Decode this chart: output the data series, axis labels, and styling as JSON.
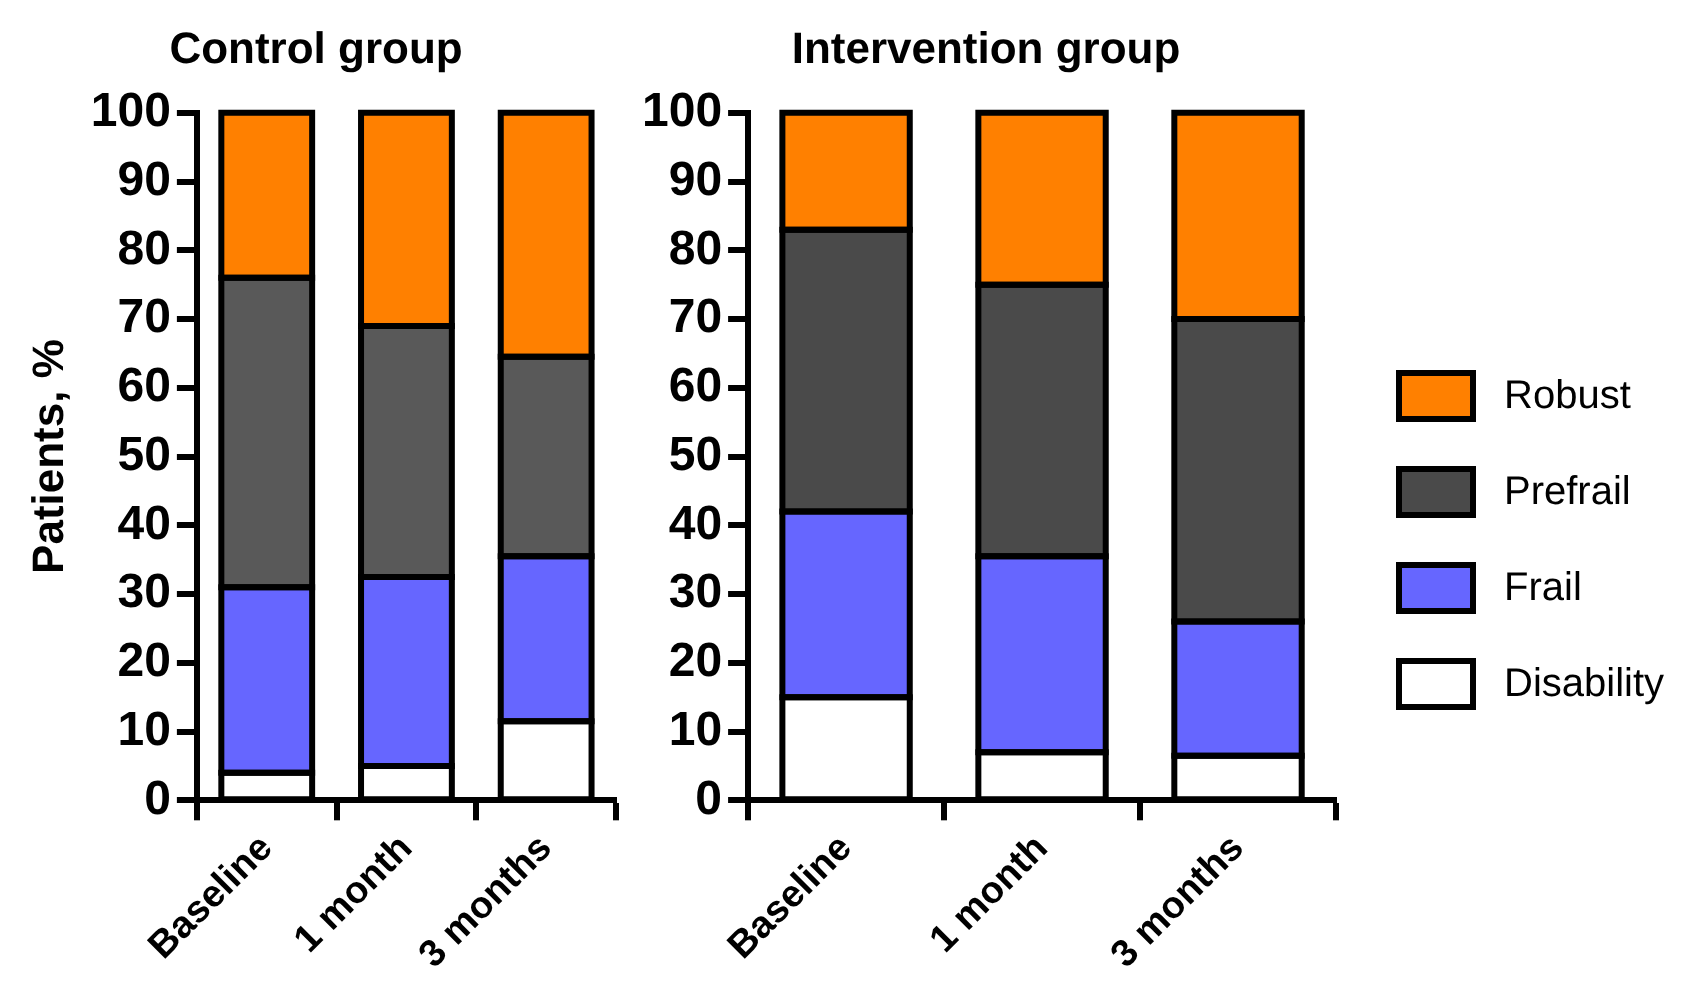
{
  "chart_data": [
    {
      "type": "bar",
      "title": "Control group",
      "ylabel": "Patients, %",
      "categories": [
        "Baseline",
        "1 month",
        "3 months"
      ],
      "stacked": true,
      "ylim": [
        0,
        100
      ],
      "yticks": [
        0,
        10,
        20,
        30,
        40,
        50,
        60,
        70,
        80,
        90,
        100
      ],
      "grid": false,
      "legend": false,
      "series": [
        {
          "color": "#ffffff",
          "values": [
            4,
            5,
            11.5
          ]
        },
        {
          "color": "#6666ff",
          "values": [
            27,
            27.5,
            24
          ]
        },
        {
          "color": "#595959",
          "values": [
            45,
            36.5,
            29
          ]
        },
        {
          "color": "#ff8000",
          "values": [
            24,
            31,
            35.5
          ]
        }
      ]
    },
    {
      "type": "bar",
      "title": "Intervention group",
      "categories": [
        "Baseline",
        "1 month",
        "3 months"
      ],
      "stacked": true,
      "ylim": [
        0,
        100
      ],
      "yticks": [
        0,
        10,
        20,
        30,
        40,
        50,
        60,
        70,
        80,
        90,
        100
      ],
      "grid": false,
      "legend": "right",
      "series": [
        {
          "name": "Disability",
          "color": "#ffffff",
          "values": [
            15,
            7,
            6.5
          ]
        },
        {
          "name": "Frail",
          "color": "#6666ff",
          "values": [
            27,
            28.5,
            19.5
          ]
        },
        {
          "name": "Prefrail",
          "color": "#4a4a4a",
          "values": [
            41,
            39.5,
            44
          ]
        },
        {
          "name": "Robust",
          "color": "#ff8000",
          "values": [
            17,
            25,
            30
          ]
        }
      ]
    }
  ]
}
